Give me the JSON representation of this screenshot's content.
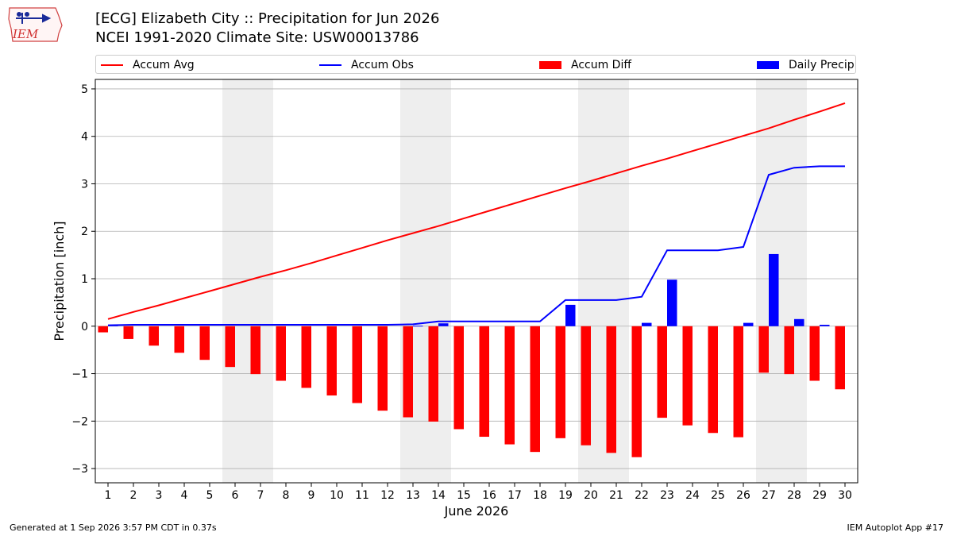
{
  "header": {
    "title_line1": "[ECG] Elizabeth City :: Precipitation for Jun 2026",
    "title_line2": "NCEI 1991-2020 Climate Site: USW00013786",
    "logo_text": "IEM"
  },
  "footer": {
    "left": "Generated at 1 Sep 2026 3:57 PM CDT in 0.37s",
    "right": "IEM Autoplot App #17"
  },
  "colors": {
    "accum_avg": "#ff0000",
    "accum_obs": "#0000ff",
    "accum_diff": "#ff0000",
    "daily_precip": "#0000ff",
    "weekend_shade": "#eeeeee",
    "grid": "#b0b0b0"
  },
  "legend": [
    {
      "label": "Accum Avg",
      "kind": "line",
      "color": "#ff0000"
    },
    {
      "label": "Accum Obs",
      "kind": "line",
      "color": "#0000ff"
    },
    {
      "label": "Accum Diff",
      "kind": "bar",
      "color": "#ff0000"
    },
    {
      "label": "Daily Precip",
      "kind": "bar",
      "color": "#0000ff"
    }
  ],
  "chart_data": {
    "type": "bar",
    "xlabel": "June 2026",
    "ylabel": "Precipitation [inch]",
    "ylim": [
      -3.3,
      5.2
    ],
    "yticks": [
      -3,
      -2,
      -1,
      0,
      1,
      2,
      3,
      4,
      5
    ],
    "ytick_labels": [
      "−3",
      "−2",
      "−1",
      "0",
      "1",
      "2",
      "3",
      "4",
      "5"
    ],
    "grid": true,
    "legend_position": "top",
    "x": [
      1,
      2,
      3,
      4,
      5,
      6,
      7,
      8,
      9,
      10,
      11,
      12,
      13,
      14,
      15,
      16,
      17,
      18,
      19,
      20,
      21,
      22,
      23,
      24,
      25,
      26,
      27,
      28,
      29,
      30
    ],
    "weekend_days": [
      6,
      7,
      13,
      14,
      20,
      21,
      27,
      28
    ],
    "series": [
      {
        "name": "Accum Avg",
        "type": "line",
        "values": [
          0.15,
          0.3,
          0.44,
          0.59,
          0.74,
          0.89,
          1.04,
          1.18,
          1.33,
          1.49,
          1.65,
          1.81,
          1.96,
          2.11,
          2.27,
          2.43,
          2.59,
          2.75,
          2.91,
          3.06,
          3.22,
          3.38,
          3.53,
          3.69,
          3.85,
          4.01,
          4.17,
          4.35,
          4.52,
          4.7
        ]
      },
      {
        "name": "Accum Obs",
        "type": "line",
        "values": [
          0.02,
          0.03,
          0.03,
          0.03,
          0.03,
          0.03,
          0.03,
          0.03,
          0.03,
          0.03,
          0.03,
          0.03,
          0.04,
          0.1,
          0.1,
          0.1,
          0.1,
          0.1,
          0.55,
          0.55,
          0.55,
          0.62,
          1.6,
          1.6,
          1.6,
          1.67,
          3.19,
          3.34,
          3.37,
          3.37
        ]
      },
      {
        "name": "Accum Diff",
        "type": "bar",
        "values": [
          -0.13,
          -0.27,
          -0.41,
          -0.56,
          -0.71,
          -0.86,
          -1.01,
          -1.15,
          -1.3,
          -1.46,
          -1.62,
          -1.78,
          -1.92,
          -2.01,
          -2.17,
          -2.33,
          -2.49,
          -2.65,
          -2.36,
          -2.51,
          -2.67,
          -2.76,
          -1.93,
          -2.09,
          -2.25,
          -2.34,
          -0.98,
          -1.01,
          -1.15,
          -1.33
        ]
      },
      {
        "name": "Daily Precip",
        "type": "bar",
        "values": [
          0.02,
          0,
          0,
          0,
          0,
          0,
          0,
          0,
          0,
          0,
          0,
          0,
          0.01,
          0.06,
          0,
          0,
          0,
          0,
          0.45,
          0,
          0,
          0.07,
          0.98,
          0,
          0,
          0.07,
          1.52,
          0.15,
          0.03,
          0
        ]
      }
    ]
  }
}
